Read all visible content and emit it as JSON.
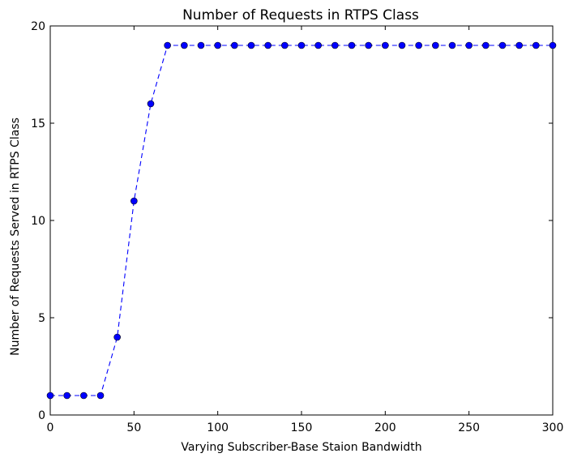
{
  "chart_data": {
    "type": "line",
    "title": "Number of Requests in RTPS Class",
    "xlabel": "Varying Subscriber-Base Staion Bandwidth",
    "ylabel": "Number of Requests Served in RTPS Class",
    "xlim": [
      0,
      300
    ],
    "ylim": [
      0,
      20
    ],
    "xticks": [
      "0",
      "50",
      "100",
      "150",
      "200",
      "250",
      "300"
    ],
    "yticks": [
      "0",
      "5",
      "10",
      "15",
      "20"
    ],
    "grid": false,
    "series": [
      {
        "x": [
          0,
          10,
          20,
          30,
          40,
          50,
          60,
          70,
          80,
          90,
          100,
          110,
          120,
          130,
          140,
          150,
          160,
          170,
          180,
          190,
          200,
          210,
          220,
          230,
          240,
          250,
          260,
          270,
          280,
          290,
          300
        ],
        "values": [
          1,
          1,
          1,
          1,
          4,
          11,
          16,
          19,
          19,
          19,
          19,
          19,
          19,
          19,
          19,
          19,
          19,
          19,
          19,
          19,
          19,
          19,
          19,
          19,
          19,
          19,
          19,
          19,
          19,
          19,
          19
        ],
        "color": "#0000ff",
        "line_style": "dashed",
        "marker": "circle"
      }
    ]
  }
}
